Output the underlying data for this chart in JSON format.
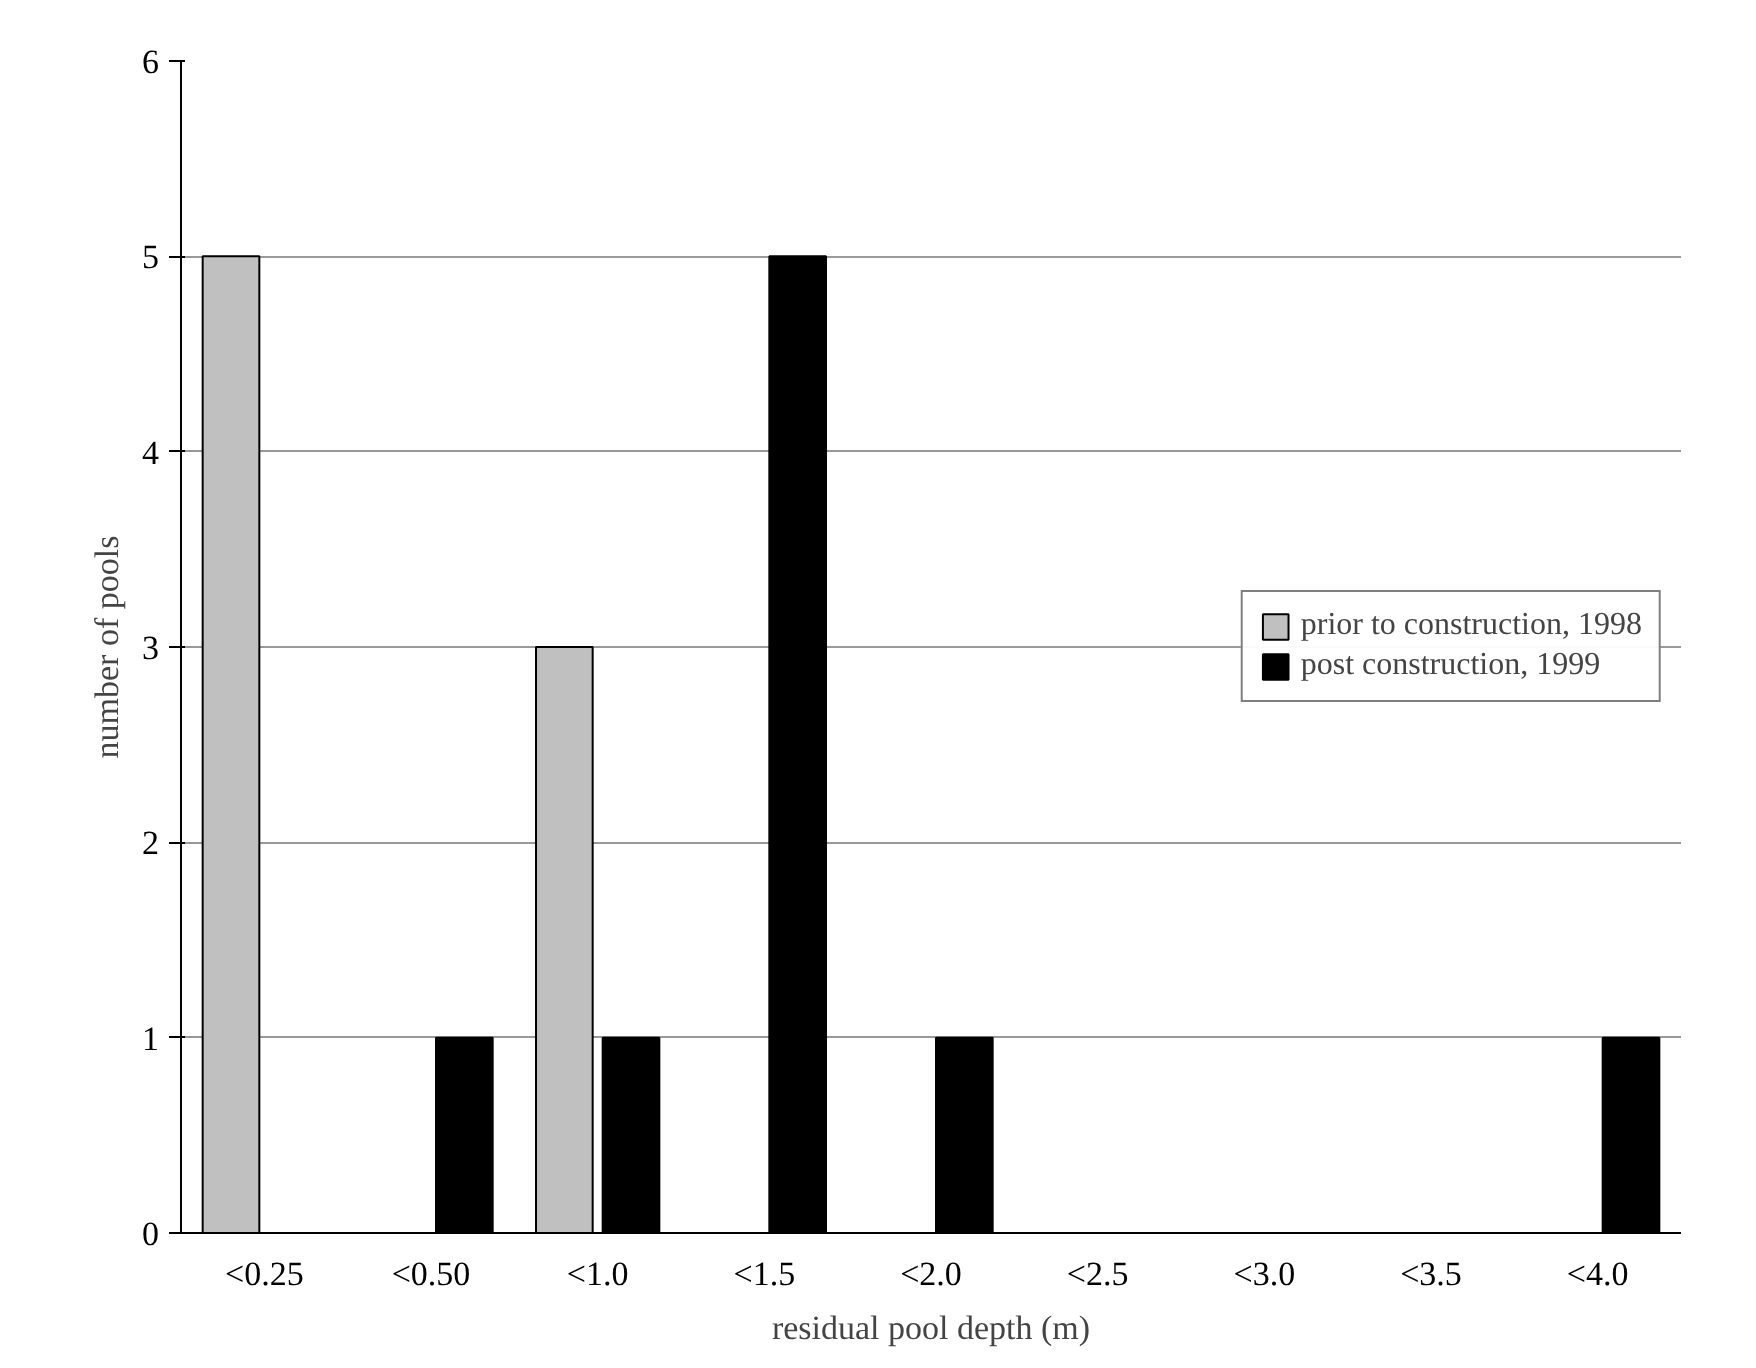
{
  "chart_data": {
    "type": "bar",
    "xlabel": "residual pool depth (m)",
    "ylabel": "number of pools",
    "categories": [
      "<0.25",
      "<0.50",
      "<1.0",
      "<1.5",
      "<2.0",
      "<2.5",
      "<3.0",
      "<3.5",
      "<4.0"
    ],
    "series": [
      {
        "name": "prior to construction, 1998",
        "color": "#c0c0c0",
        "values": [
          5,
          0,
          3,
          0,
          0,
          0,
          0,
          0,
          0
        ]
      },
      {
        "name": "post construction, 1999",
        "color": "#000000",
        "values": [
          0,
          1,
          1,
          5,
          1,
          0,
          0,
          0,
          1
        ]
      }
    ],
    "ylim": [
      0,
      6
    ],
    "yticks": [
      0,
      1,
      2,
      3,
      4,
      5,
      6
    ],
    "grid": "y",
    "legend": "right"
  }
}
